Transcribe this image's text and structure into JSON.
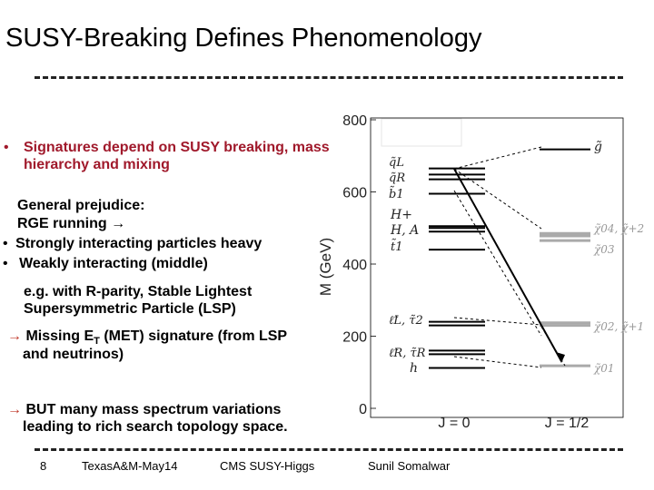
{
  "slide": {
    "title": "SUSY-Breaking Defines Phenomenology",
    "bullet_signatures": "Signatures depend on SUSY breaking, mass hierarchy and mixing",
    "prejudice_1": "General prejudice:",
    "prejudice_2": "RGE running",
    "bullet_strong": "Strongly interacting particles heavy",
    "bullet_weak": "Weakly interacting (middle)",
    "lsp_note": "e.g. with R-parity, Stable Lightest Supersymmetric Particle (LSP)",
    "met_prefix": "Missing E",
    "met_sub": "T",
    "met_suffix": " (MET) signature (from LSP",
    "met_line2": "and neutrinos)",
    "but_line1": "BUT many mass spectrum variations",
    "but_line2": "leading to rich search topology space.",
    "bullet_marker": "•",
    "arrow_symbol": "→"
  },
  "footer": {
    "page_number": "8",
    "venue": "TexasA&M-May14",
    "event": "CMS SUSY-Higgs",
    "author": "Sunil Somalwar"
  },
  "diagram": {
    "ylabel": "M (GeV)",
    "yticks": [
      0,
      200,
      400,
      600,
      800
    ],
    "x_labels": [
      "J = 0",
      "J = 1/2"
    ],
    "labels": {
      "qL": "q̃L",
      "qR": "q̃R",
      "b1": "b̃1",
      "Hplus": "H+",
      "HA": "H, A",
      "t1": "t̃1",
      "lL": "ℓ̃L, τ̃2",
      "lR": "ℓ̃R, τ̃R",
      "h": "h",
      "gluino": "g̃",
      "chi_heavy_1": "χ̃04, χ̃+2",
      "chi_heavy_2": "χ̃03",
      "chi_mid": "χ̃02, χ̃+1",
      "chi_lsp": "χ̃01"
    },
    "j0_levels": [
      {
        "mass": 665,
        "color": "#000000"
      },
      {
        "mass": 648,
        "color": "#000000"
      },
      {
        "mass": 635,
        "color": "#000000"
      },
      {
        "mass": 595,
        "color": "#000000"
      },
      {
        "mass": 505,
        "color": "#000000"
      },
      {
        "mass": 500,
        "color": "#000000"
      },
      {
        "mass": 490,
        "color": "#000000"
      },
      {
        "mass": 440,
        "color": "#000000"
      },
      {
        "mass": 240,
        "color": "#000000"
      },
      {
        "mass": 230,
        "color": "#000000"
      },
      {
        "mass": 160,
        "color": "#000000"
      },
      {
        "mass": 150,
        "color": "#000000"
      },
      {
        "mass": 112,
        "color": "#000000"
      }
    ],
    "j12_levels": [
      {
        "mass": 718,
        "color": "#000000"
      },
      {
        "mass": 485,
        "color": "#aaaaaa"
      },
      {
        "mass": 478,
        "color": "#aaaaaa"
      },
      {
        "mass": 465,
        "color": "#aaaaaa"
      },
      {
        "mass": 237,
        "color": "#aaaaaa"
      },
      {
        "mass": 230,
        "color": "#aaaaaa"
      },
      {
        "mass": 118,
        "color": "#aaaaaa"
      }
    ]
  }
}
